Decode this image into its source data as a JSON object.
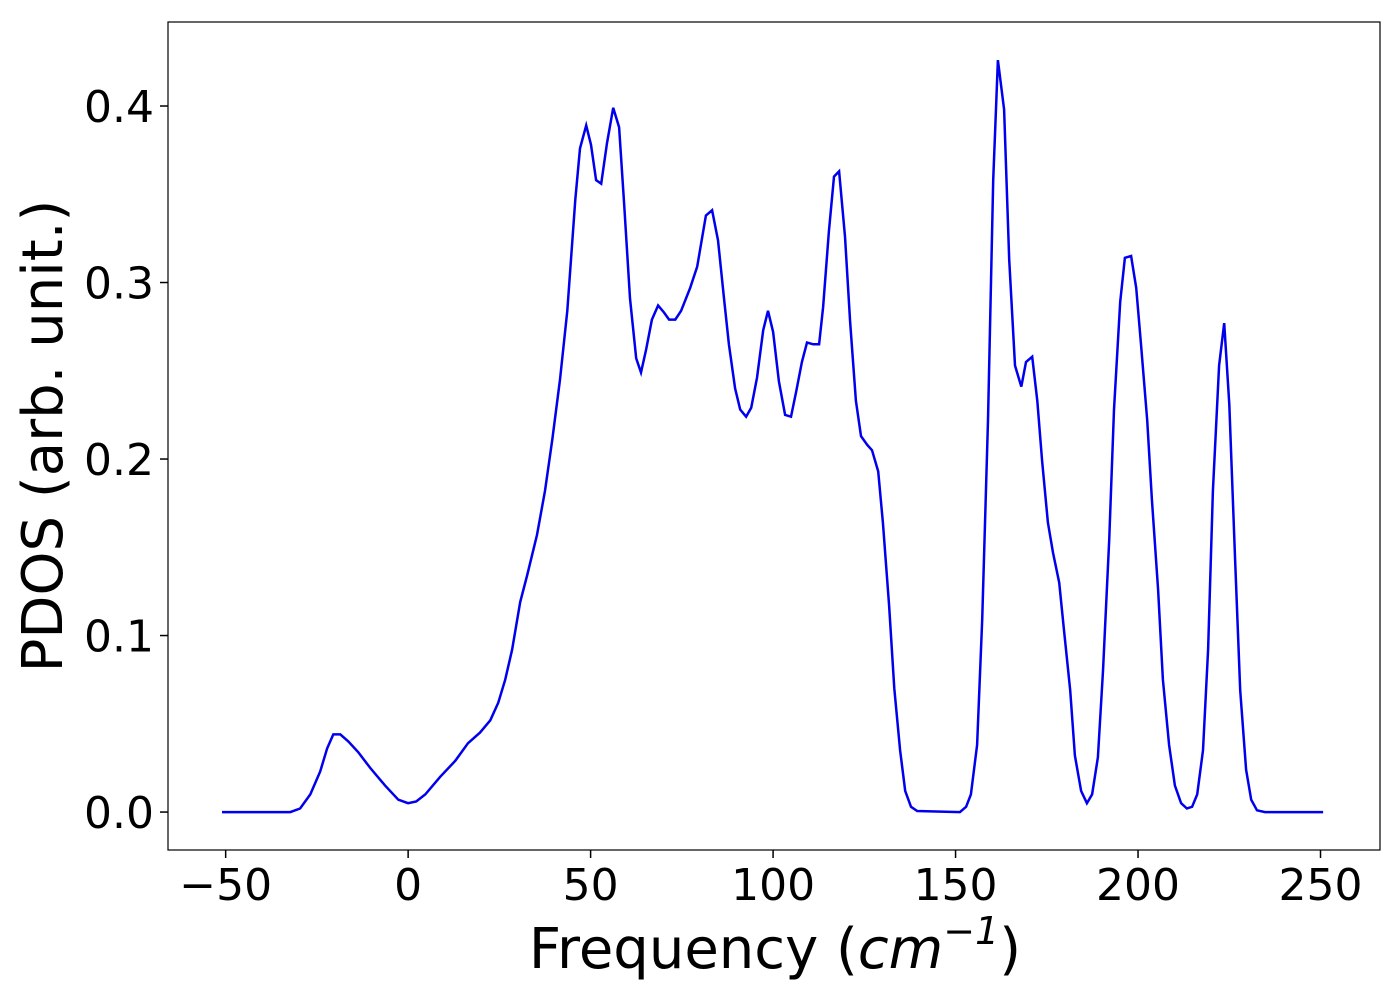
{
  "chart_data": {
    "type": "line",
    "xlabel": [
      "Frequency (",
      "cm",
      "−1",
      ")"
    ],
    "ylabel": "PDOS (arb. unit.)",
    "xlim": [
      -65.8,
      266.3
    ],
    "ylim": [
      -0.0215,
      0.4476
    ],
    "xticks": [
      {
        "value": -50,
        "label": "−50"
      },
      0,
      50,
      100,
      150,
      200,
      250
    ],
    "yticks": [
      {
        "value": 0,
        "label": "0.0"
      },
      0.1,
      0.2,
      0.3,
      0.4
    ],
    "series": [
      {
        "color": "#0000ee",
        "x": [
          -51,
          -32.3,
          -29.6,
          -26.8,
          -24.1,
          -22.2,
          -20.5,
          -18.6,
          -16.4,
          -13.7,
          -10.4,
          -6.3,
          -2.7,
          0,
          2.2,
          4.7,
          8.8,
          12.9,
          16.4,
          19.7,
          22.5,
          24.7,
          26.6,
          28.5,
          30.7,
          32.6,
          35.3,
          37.5,
          39.5,
          41.6,
          43.6,
          45.8,
          47.1,
          48.8,
          50.1,
          51.5,
          52.9,
          54.5,
          56.2,
          57.8,
          59.2,
          60.8,
          62.5,
          63.8,
          65.2,
          66.8,
          68.5,
          70.1,
          71.5,
          73.2,
          74.8,
          77.3,
          79.2,
          81.6,
          83.3,
          84.9,
          86.6,
          87.9,
          89.6,
          91,
          92.6,
          94,
          95.6,
          97.3,
          98.6,
          100,
          101.6,
          103.3,
          104.9,
          106.3,
          107.9,
          109.3,
          111,
          112.6,
          113.7,
          115.3,
          116.7,
          118.1,
          119.7,
          121.1,
          122.7,
          124.1,
          125.8,
          127.1,
          128.8,
          130.1,
          131.8,
          133.2,
          134.8,
          136.2,
          137.8,
          139.5,
          151.2,
          152.9,
          154.2,
          155.9,
          157.3,
          158.9,
          160.3,
          161.6,
          163.3,
          164.7,
          166.3,
          168,
          169.3,
          171,
          172.4,
          173.7,
          175.3,
          176.7,
          178.4,
          179.7,
          181.4,
          182.7,
          184.4,
          186,
          187.4,
          189,
          190.4,
          192.1,
          193.4,
          195.1,
          196.4,
          198.1,
          199.5,
          200.8,
          202.5,
          203.8,
          205.5,
          206.8,
          208.5,
          210.1,
          211.8,
          213.4,
          214.8,
          216.2,
          217.8,
          219.2,
          220.5,
          222.2,
          223.6,
          225,
          226.6,
          228,
          229.6,
          231,
          232.6,
          234.8,
          250.7
        ],
        "values": [
          0,
          0,
          0.002,
          0.01,
          0.023,
          0.036,
          0.044,
          0.044,
          0.04,
          0.034,
          0.025,
          0.015,
          0.007,
          0.005,
          0.006,
          0.01,
          0.02,
          0.029,
          0.039,
          0.045,
          0.052,
          0.062,
          0.075,
          0.092,
          0.119,
          0.134,
          0.157,
          0.182,
          0.211,
          0.245,
          0.284,
          0.347,
          0.376,
          0.389,
          0.378,
          0.358,
          0.356,
          0.379,
          0.399,
          0.388,
          0.344,
          0.291,
          0.257,
          0.249,
          0.262,
          0.279,
          0.287,
          0.283,
          0.279,
          0.279,
          0.284,
          0.297,
          0.309,
          0.338,
          0.341,
          0.324,
          0.29,
          0.265,
          0.24,
          0.228,
          0.224,
          0.229,
          0.246,
          0.273,
          0.284,
          0.272,
          0.244,
          0.225,
          0.224,
          0.238,
          0.255,
          0.266,
          0.265,
          0.265,
          0.286,
          0.329,
          0.36,
          0.363,
          0.326,
          0.278,
          0.233,
          0.213,
          0.208,
          0.205,
          0.193,
          0.164,
          0.117,
          0.07,
          0.035,
          0.012,
          0.003,
          0.0006,
          0,
          0.003,
          0.01,
          0.038,
          0.109,
          0.222,
          0.358,
          0.426,
          0.398,
          0.313,
          0.253,
          0.241,
          0.255,
          0.258,
          0.233,
          0.199,
          0.164,
          0.147,
          0.13,
          0.103,
          0.069,
          0.032,
          0.012,
          0.005,
          0.01,
          0.031,
          0.08,
          0.154,
          0.228,
          0.289,
          0.314,
          0.315,
          0.297,
          0.265,
          0.222,
          0.177,
          0.126,
          0.075,
          0.038,
          0.015,
          0.005,
          0.002,
          0.003,
          0.01,
          0.035,
          0.092,
          0.182,
          0.253,
          0.277,
          0.231,
          0.143,
          0.069,
          0.024,
          0.007,
          0.001,
          0,
          0
        ]
      }
    ]
  }
}
